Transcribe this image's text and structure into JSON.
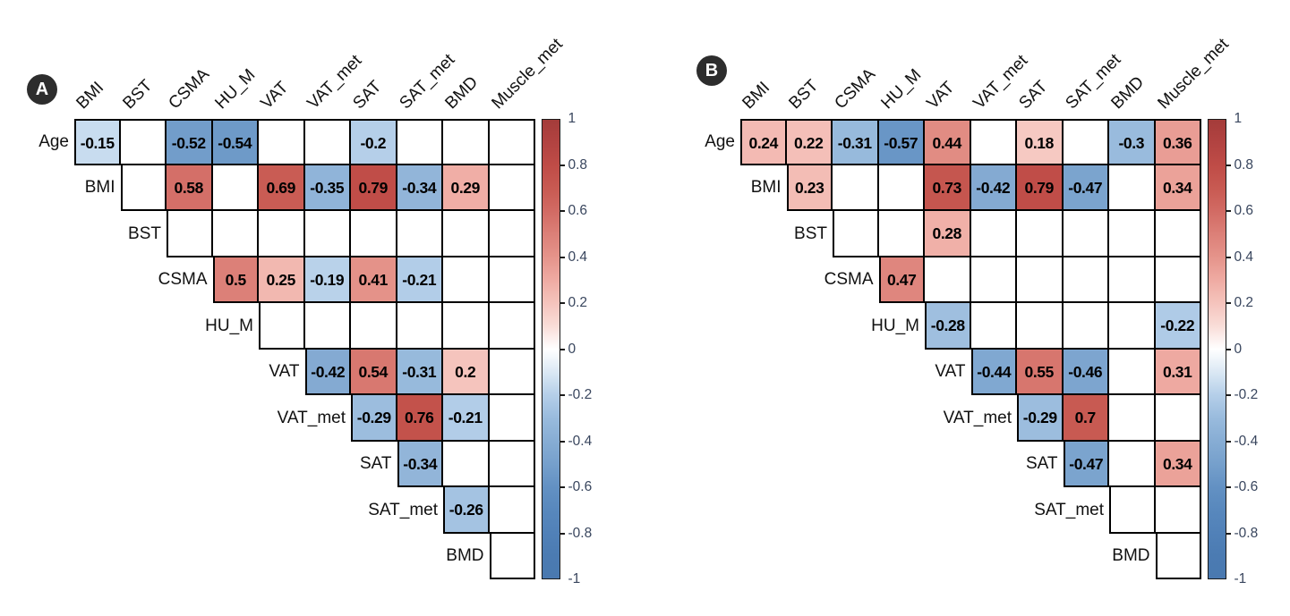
{
  "figure": {
    "background": "#ffffff"
  },
  "colors": {
    "grid_line": "#000000",
    "value_text": "#000000",
    "label_text": "#111111",
    "tick_text": "#39465e",
    "badge_bg": "#2d2d2d",
    "badge_text": "#ffffff",
    "ramp_positive": [
      "#ffffff",
      "#f9ddd8",
      "#f5c4bd",
      "#efaba3",
      "#e5948b",
      "#dc8078",
      "#d26b64",
      "#c85a52",
      "#bf4c47",
      "#b24341",
      "#a43c3a"
    ],
    "ramp_negative": [
      "#ffffff",
      "#dbe8f4",
      "#b5cfe9",
      "#99bbdd",
      "#87add4",
      "#76a0cc",
      "#6391c3",
      "#5888bd",
      "#5181b8",
      "#4b7bb2",
      "#4a79b0"
    ]
  },
  "colorbar": {
    "tick_labels": [
      "1",
      "0.8",
      "0.6",
      "0.4",
      "0.2",
      "0",
      "-0.2",
      "-0.4",
      "-0.6",
      "-0.8",
      "-1"
    ],
    "max": 1,
    "min": -1
  },
  "chart_data": [
    {
      "type": "heatmap",
      "panel_label": "A",
      "variables": [
        "Age",
        "BMI",
        "BST",
        "CSMA",
        "HU_M",
        "VAT",
        "VAT_met",
        "SAT",
        "SAT_met",
        "BMD",
        "Muscle_met"
      ],
      "row_labels": [
        "Age",
        "BMI",
        "BST",
        "CSMA",
        "HU_M",
        "VAT",
        "VAT_met",
        "SAT",
        "SAT_met",
        "BMD"
      ],
      "col_labels": [
        "BMI",
        "BST",
        "CSMA",
        "HU_M",
        "VAT",
        "VAT_met",
        "SAT",
        "SAT_met",
        "BMD",
        "Muscle_met"
      ],
      "value_range": [
        -1,
        1
      ],
      "cells": {
        "Age": {
          "BMI": -0.15,
          "CSMA": -0.52,
          "HU_M": -0.54,
          "SAT": -0.2
        },
        "BMI": {
          "CSMA": 0.58,
          "VAT": 0.69,
          "VAT_met": -0.35,
          "SAT": 0.79,
          "SAT_met": -0.34,
          "BMD": 0.29
        },
        "BST": {},
        "CSMA": {
          "HU_M": 0.5,
          "VAT": 0.25,
          "VAT_met": -0.19,
          "SAT": 0.41,
          "SAT_met": -0.21
        },
        "HU_M": {},
        "VAT": {
          "VAT_met": -0.42,
          "SAT": 0.54,
          "SAT_met": -0.31,
          "BMD": 0.2
        },
        "VAT_met": {
          "SAT": -0.29,
          "SAT_met": 0.76,
          "BMD": -0.21
        },
        "SAT": {
          "SAT_met": -0.34
        },
        "SAT_met": {
          "BMD": -0.26
        },
        "BMD": {}
      }
    },
    {
      "type": "heatmap",
      "panel_label": "B",
      "variables": [
        "Age",
        "BMI",
        "BST",
        "CSMA",
        "HU_M",
        "VAT",
        "VAT_met",
        "SAT",
        "SAT_met",
        "BMD",
        "Muscle_met"
      ],
      "row_labels": [
        "Age",
        "BMI",
        "BST",
        "CSMA",
        "HU_M",
        "VAT",
        "VAT_met",
        "SAT",
        "SAT_met",
        "BMD"
      ],
      "col_labels": [
        "BMI",
        "BST",
        "CSMA",
        "HU_M",
        "VAT",
        "VAT_met",
        "SAT",
        "SAT_met",
        "BMD",
        "Muscle_met"
      ],
      "value_range": [
        -1,
        1
      ],
      "cells": {
        "Age": {
          "BMI": 0.24,
          "BST": 0.22,
          "CSMA": -0.31,
          "HU_M": -0.57,
          "VAT": 0.44,
          "SAT": 0.18,
          "BMD": -0.3,
          "Muscle_met": 0.36
        },
        "BMI": {
          "BST": 0.23,
          "VAT": 0.73,
          "VAT_met": -0.42,
          "SAT": 0.79,
          "SAT_met": -0.47,
          "Muscle_met": 0.34
        },
        "BST": {
          "VAT": 0.28
        },
        "CSMA": {
          "HU_M": 0.47
        },
        "HU_M": {
          "VAT": -0.28,
          "Muscle_met": -0.22
        },
        "VAT": {
          "VAT_met": -0.44,
          "SAT": 0.55,
          "SAT_met": -0.46,
          "Muscle_met": 0.31
        },
        "VAT_met": {
          "SAT": -0.29,
          "SAT_met": 0.7
        },
        "SAT": {
          "SAT_met": -0.47,
          "Muscle_met": 0.34
        },
        "SAT_met": {},
        "BMD": {}
      }
    }
  ]
}
